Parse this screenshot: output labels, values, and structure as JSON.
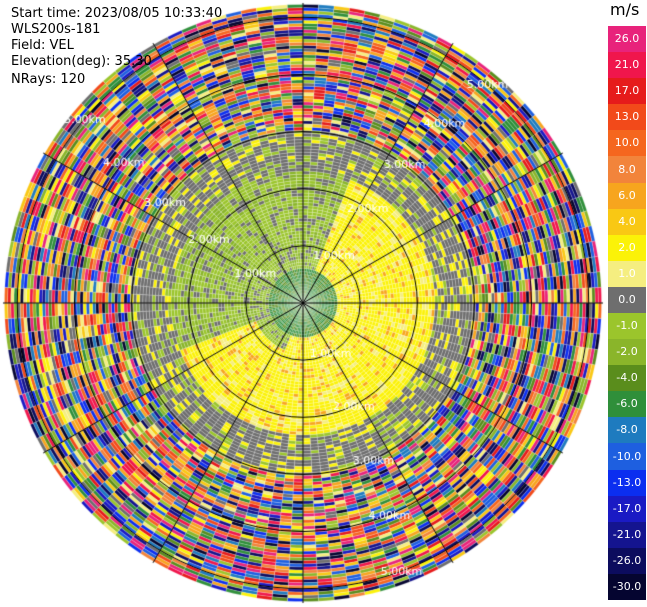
{
  "header": {
    "start_time": "Start time: 2023/08/05 10:33:40",
    "instrument": "WLS200s-181",
    "field": "Field: VEL",
    "elevation": "Elevation(deg): 35.30",
    "nrays": "NRays: 120"
  },
  "colorbar": {
    "unit": "m/s",
    "entries": [
      {
        "label": "26.0",
        "color": "#e8237b"
      },
      {
        "label": "21.0",
        "color": "#f0164c"
      },
      {
        "label": "17.0",
        "color": "#e61b1b"
      },
      {
        "label": "13.0",
        "color": "#f24a1a"
      },
      {
        "label": "10.0",
        "color": "#f5661e"
      },
      {
        "label": "8.0",
        "color": "#f2843b"
      },
      {
        "label": "6.0",
        "color": "#f7a51e"
      },
      {
        "label": "4.0",
        "color": "#f9c814"
      },
      {
        "label": "2.0",
        "color": "#fbf208"
      },
      {
        "label": "1.0",
        "color": "#f5ee80"
      },
      {
        "label": "0.0",
        "color": "#6e6e6e"
      },
      {
        "label": "-1.0",
        "color": "#9bc52c"
      },
      {
        "label": "-2.0",
        "color": "#8ab52a"
      },
      {
        "label": "-4.0",
        "color": "#5a8d1c"
      },
      {
        "label": "-6.0",
        "color": "#2f8f3a"
      },
      {
        "label": "-8.0",
        "color": "#1e7bbf"
      },
      {
        "label": "-10.0",
        "color": "#1e5fe0"
      },
      {
        "label": "-13.0",
        "color": "#0b2ef0"
      },
      {
        "label": "-17.0",
        "color": "#1a1ac4"
      },
      {
        "label": "-21.0",
        "color": "#14148f"
      },
      {
        "label": "-26.0",
        "color": "#0c0c5e"
      },
      {
        "label": "-30.0",
        "color": "#050530"
      }
    ]
  },
  "chart_data": {
    "type": "heatmap",
    "subtype": "ppi-polar",
    "rays": 120,
    "max_range_km": 5.25,
    "range_rings_km": [
      1,
      2,
      3,
      4,
      5
    ],
    "ring_labels": [
      {
        "text": "1.00km"
      },
      {
        "text": "1.00km"
      },
      {
        "text": "1.00km"
      },
      {
        "text": "2.00km"
      },
      {
        "text": "2.00km"
      },
      {
        "text": "2.00km"
      },
      {
        "text": "3.00km"
      },
      {
        "text": "3.00km"
      },
      {
        "text": "3.00km"
      },
      {
        "text": "4.00km"
      },
      {
        "text": "4.00km"
      },
      {
        "text": "4.00km"
      },
      {
        "text": "5.00km"
      },
      {
        "text": "5.00km"
      },
      {
        "text": "5.00km"
      }
    ],
    "spoke_angles_deg": [
      0,
      30,
      60,
      90,
      120,
      150,
      180,
      210,
      240,
      270,
      300,
      330
    ],
    "description_regions": [
      {
        "range_km": [
          0.0,
          0.6
        ],
        "dominant_value": -6.0
      },
      {
        "range_km": [
          0.6,
          2.3
        ],
        "west_half": -2.0,
        "east_half": 2.0
      },
      {
        "range_km": [
          2.3,
          3.0
        ],
        "value": 0.0
      },
      {
        "range_km": [
          3.0,
          5.25
        ],
        "value": "noise"
      }
    ]
  }
}
